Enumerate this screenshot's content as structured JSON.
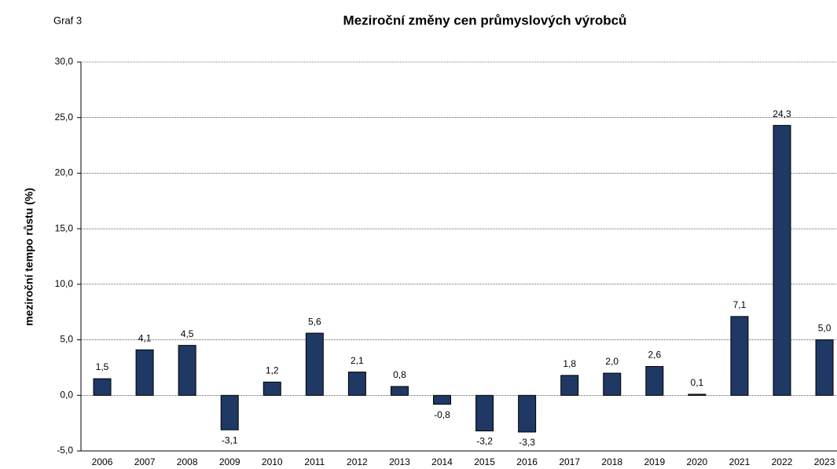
{
  "chart_data": {
    "type": "bar",
    "label": "Graf 3",
    "title": "Meziroční změny cen průmyslových výrobců",
    "ylabel": "meziroční tempo růstu (%)",
    "categories": [
      "2006",
      "2007",
      "2008",
      "2009",
      "2010",
      "2011",
      "2012",
      "2013",
      "2014",
      "2015",
      "2016",
      "2017",
      "2018",
      "2019",
      "2020",
      "2021",
      "2022",
      "2023"
    ],
    "values": [
      1.5,
      4.1,
      4.5,
      -3.1,
      1.2,
      5.6,
      2.1,
      0.8,
      -0.8,
      -3.2,
      -3.3,
      1.8,
      2.0,
      2.6,
      0.1,
      7.1,
      24.3,
      5.0
    ],
    "value_labels": [
      "1,5",
      "4,1",
      "4,5",
      "-3,1",
      "1,2",
      "5,6",
      "2,1",
      "0,8",
      "-0,8",
      "-3,2",
      "-3,3",
      "1,8",
      "2,0",
      "2,6",
      "0,1",
      "7,1",
      "24,3",
      "5,0"
    ],
    "color": "#1f3864",
    "ylim": [
      -5,
      30
    ],
    "yticks": [
      {
        "value": -5,
        "label": "-5,0"
      },
      {
        "value": 0,
        "label": "0,0"
      },
      {
        "value": 5,
        "label": "5,0"
      },
      {
        "value": 10,
        "label": "10,0"
      },
      {
        "value": 15,
        "label": "15,0"
      },
      {
        "value": 20,
        "label": "20,0"
      },
      {
        "value": 25,
        "label": "25,0"
      },
      {
        "value": 30,
        "label": "30,0"
      }
    ],
    "grid": true
  }
}
